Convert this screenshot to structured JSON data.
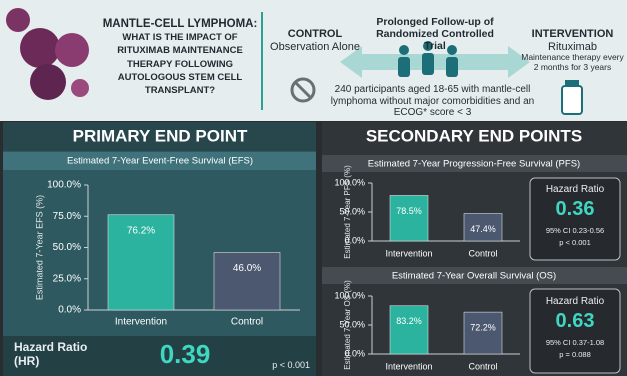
{
  "header": {
    "question_title": "MANTLE-CELL LYMPHOMA:",
    "question": "WHAT IS THE IMPACT OF RITUXIMAB MAINTENANCE THERAPY FOLLOWING AUTOLOGOUS STEM CELL TRANSPLANT?",
    "control": {
      "title": "CONTROL",
      "desc": "Observation Alone"
    },
    "trial_title": "Prolonged Follow-up of Randomized Controlled Trial",
    "participants": "240 participants aged 18-65 with mantle-cell lymphoma without major comorbidities and an ECOG* score < 3",
    "intervention": {
      "title": "INTERVENTION",
      "drug": "Rituximab",
      "desc": "Maintenance therapy every 2 months for 3 years"
    }
  },
  "sections": {
    "primary": "PRIMARY END POINT",
    "secondary": "SECONDARY END POINTS"
  },
  "chart_data": [
    {
      "type": "bar",
      "title": "Estimated 7-Year Event-Free Survival (EFS)",
      "y_label": "Estimated 7-Year EFS (%)",
      "categories": [
        "Intervention",
        "Control"
      ],
      "values": [
        76.2,
        46.0
      ],
      "value_labels": [
        "76.2%",
        "46.0%"
      ],
      "colors": [
        "#2bb39f",
        "#4b5870"
      ],
      "ylim": [
        0,
        100
      ],
      "yticks": [
        {
          "value": 0,
          "label": "0.0%"
        },
        {
          "value": 25,
          "label": "25.0%"
        },
        {
          "value": 50,
          "label": "50.0%"
        },
        {
          "value": 75,
          "label": "75.0%"
        },
        {
          "value": 100,
          "label": "100.0%"
        }
      ],
      "hazard_ratio": {
        "label": "Hazard Ratio (HR)",
        "value": "0.39",
        "p": "p < 0.001"
      }
    },
    {
      "type": "bar",
      "title": "Estimated 7-Year Progression-Free Survival (PFS)",
      "y_label": "Estimated 7-Year PFS (%)",
      "categories": [
        "Intervention",
        "Control"
      ],
      "values": [
        78.5,
        47.4
      ],
      "value_labels": [
        "78.5%",
        "47.4%"
      ],
      "colors": [
        "#2bb39f",
        "#4b5870"
      ],
      "ylim": [
        0,
        100
      ],
      "yticks": [
        {
          "value": 0,
          "label": "0.0%"
        },
        {
          "value": 50,
          "label": "50.0%"
        },
        {
          "value": 100,
          "label": "100.0%"
        }
      ],
      "hazard_ratio": {
        "label": "Hazard Ratio",
        "value": "0.36",
        "ci": "95% CI 0.23-0.56",
        "p": "p < 0.001"
      }
    },
    {
      "type": "bar",
      "title": "Estimated 7-Year Overall Survival (OS)",
      "y_label": "Estimated 7-Year OS (%)",
      "categories": [
        "Intervention",
        "Control"
      ],
      "values": [
        83.2,
        72.2
      ],
      "value_labels": [
        "83.2%",
        "72.2%"
      ],
      "colors": [
        "#2bb39f",
        "#4b5870"
      ],
      "ylim": [
        0,
        100
      ],
      "yticks": [
        {
          "value": 0,
          "label": "0.0%"
        },
        {
          "value": 50,
          "label": "50.0%"
        },
        {
          "value": 100,
          "label": "100.0%"
        }
      ],
      "hazard_ratio": {
        "label": "Hazard Ratio",
        "value": "0.63",
        "ci": "95% CI 0.37-1.08",
        "p": "p = 0.088"
      }
    }
  ]
}
